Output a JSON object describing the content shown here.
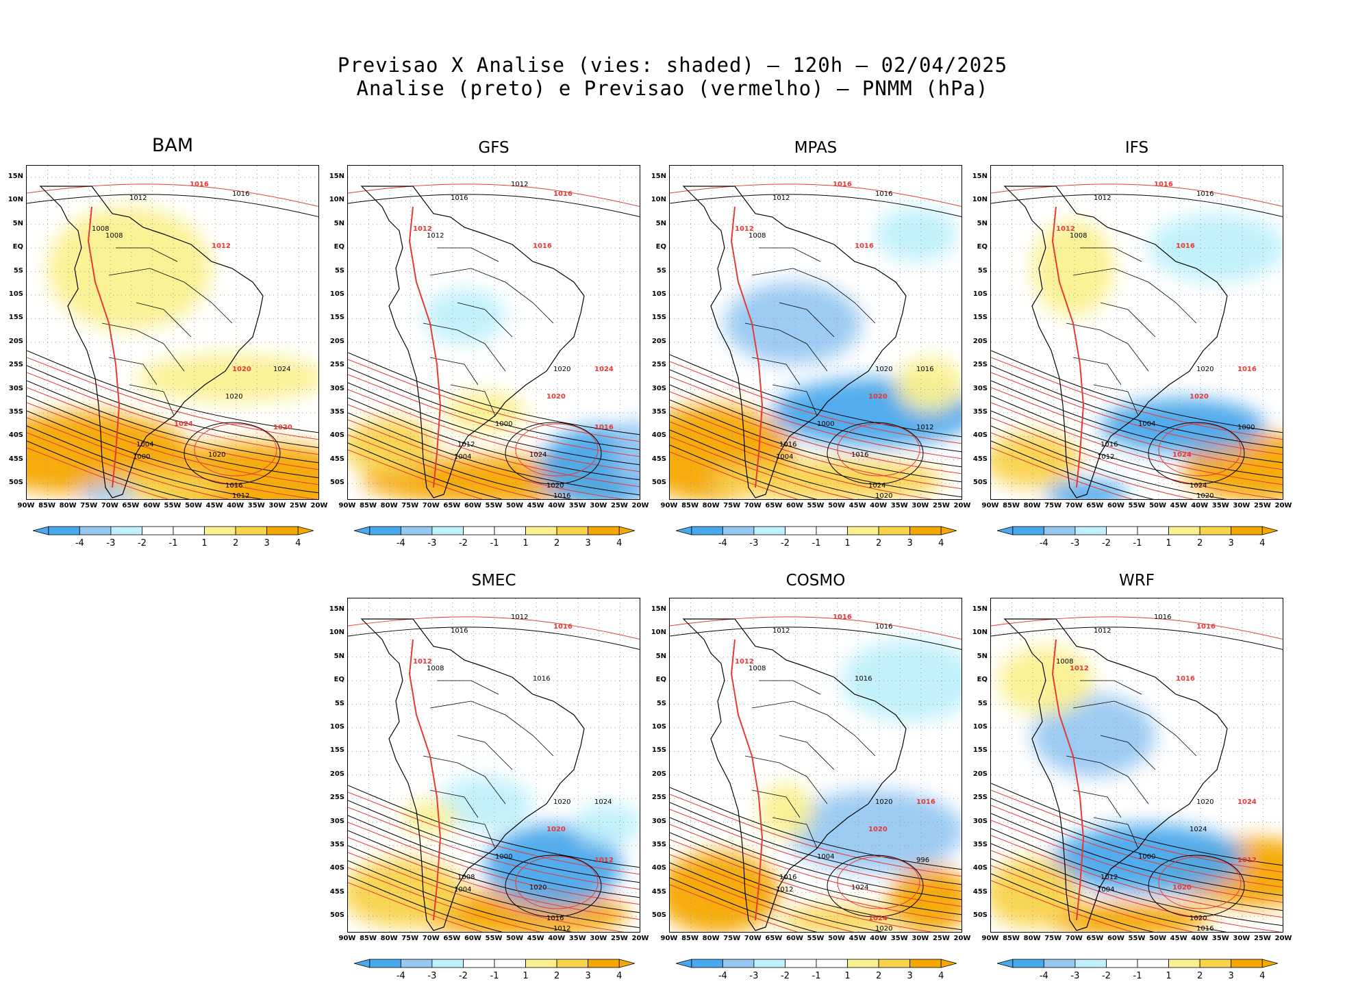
{
  "title_line1": "Previsao X Analise (vies: shaded) — 120h — 02/04/2025",
  "title_line2": "Analise (preto) e Previsao (vermelho) — PNMM (hPa)",
  "colors": {
    "neg4": "#4aa8ec",
    "neg3": "#97c8f2",
    "neg2": "#bff0fb",
    "neg1": "#ffffff",
    "pos1": "#ffffff",
    "pos2": "#fbf08f",
    "pos3": "#f9d34b",
    "pos4": "#f5a800",
    "analysis_isobar": "#000000",
    "forecast_isobar": "#e53935"
  },
  "lat_labels": [
    "15N",
    "10N",
    "5N",
    "EQ",
    "5S",
    "10S",
    "15S",
    "20S",
    "25S",
    "30S",
    "35S",
    "40S",
    "45S",
    "50S"
  ],
  "lon_labels": [
    "90W",
    "85W",
    "80W",
    "75W",
    "70W",
    "65W",
    "60W",
    "55W",
    "50W",
    "45W",
    "40W",
    "35W",
    "30W",
    "25W",
    "20W"
  ],
  "colorbar_labels": [
    "-4",
    "-3",
    "-2",
    "-1",
    "1",
    "2",
    "3",
    "4"
  ],
  "panels": [
    {
      "name": "BAM",
      "isobars": [
        {
          "text": "1016",
          "fc": true
        },
        {
          "text": "1016",
          "fc": false
        },
        {
          "text": "1012",
          "fc": false
        },
        {
          "text": "1008",
          "fc": false
        },
        {
          "text": "1008",
          "fc": false
        },
        {
          "text": "1012",
          "fc": true
        },
        {
          "text": "1020",
          "fc": true
        },
        {
          "text": "1020",
          "fc": false
        },
        {
          "text": "1024",
          "fc": false
        },
        {
          "text": "1020",
          "fc": false
        },
        {
          "text": "1016",
          "fc": false
        },
        {
          "text": "1012",
          "fc": false
        },
        {
          "text": "1004",
          "fc": false
        },
        {
          "text": "1000",
          "fc": false
        },
        {
          "text": "1024",
          "fc": true
        },
        {
          "text": "1020",
          "fc": true
        }
      ]
    },
    {
      "name": "GFS",
      "isobars": [
        {
          "text": "1012",
          "fc": false
        },
        {
          "text": "1016",
          "fc": true
        },
        {
          "text": "1016",
          "fc": false
        },
        {
          "text": "1012",
          "fc": true
        },
        {
          "text": "1012",
          "fc": false
        },
        {
          "text": "1016",
          "fc": true
        },
        {
          "text": "1020",
          "fc": false
        },
        {
          "text": "1020",
          "fc": true
        },
        {
          "text": "1024",
          "fc": true
        },
        {
          "text": "1024",
          "fc": false
        },
        {
          "text": "1020",
          "fc": false
        },
        {
          "text": "1016",
          "fc": false
        },
        {
          "text": "1012",
          "fc": false
        },
        {
          "text": "1004",
          "fc": false
        },
        {
          "text": "1000",
          "fc": false
        },
        {
          "text": "1016",
          "fc": true
        }
      ]
    },
    {
      "name": "MPAS",
      "isobars": [
        {
          "text": "1016",
          "fc": true
        },
        {
          "text": "1016",
          "fc": false
        },
        {
          "text": "1012",
          "fc": false
        },
        {
          "text": "1012",
          "fc": true
        },
        {
          "text": "1008",
          "fc": false
        },
        {
          "text": "1016",
          "fc": true
        },
        {
          "text": "1020",
          "fc": false
        },
        {
          "text": "1020",
          "fc": true
        },
        {
          "text": "1016",
          "fc": false
        },
        {
          "text": "1016",
          "fc": false
        },
        {
          "text": "1024",
          "fc": false
        },
        {
          "text": "1020",
          "fc": false
        },
        {
          "text": "1016",
          "fc": false
        },
        {
          "text": "1004",
          "fc": false
        },
        {
          "text": "1000",
          "fc": false
        },
        {
          "text": "1012",
          "fc": false
        }
      ]
    },
    {
      "name": "IFS",
      "isobars": [
        {
          "text": "1016",
          "fc": true
        },
        {
          "text": "1016",
          "fc": false
        },
        {
          "text": "1012",
          "fc": false
        },
        {
          "text": "1012",
          "fc": true
        },
        {
          "text": "1008",
          "fc": false
        },
        {
          "text": "1016",
          "fc": true
        },
        {
          "text": "1020",
          "fc": false
        },
        {
          "text": "1020",
          "fc": true
        },
        {
          "text": "1016",
          "fc": true
        },
        {
          "text": "1024",
          "fc": true
        },
        {
          "text": "1024",
          "fc": false
        },
        {
          "text": "1020",
          "fc": false
        },
        {
          "text": "1016",
          "fc": false
        },
        {
          "text": "1012",
          "fc": false
        },
        {
          "text": "1004",
          "fc": false
        },
        {
          "text": "1000",
          "fc": false
        }
      ]
    },
    {
      "name": "SMEC",
      "isobars": [
        {
          "text": "1012",
          "fc": false
        },
        {
          "text": "1016",
          "fc": true
        },
        {
          "text": "1016",
          "fc": false
        },
        {
          "text": "1012",
          "fc": true
        },
        {
          "text": "1008",
          "fc": false
        },
        {
          "text": "1016",
          "fc": false
        },
        {
          "text": "1020",
          "fc": false
        },
        {
          "text": "1020",
          "fc": true
        },
        {
          "text": "1024",
          "fc": false
        },
        {
          "text": "1020",
          "fc": false
        },
        {
          "text": "1016",
          "fc": false
        },
        {
          "text": "1012",
          "fc": false
        },
        {
          "text": "1008",
          "fc": false
        },
        {
          "text": "1004",
          "fc": false
        },
        {
          "text": "1000",
          "fc": false
        },
        {
          "text": "1012",
          "fc": true
        }
      ]
    },
    {
      "name": "COSMO",
      "isobars": [
        {
          "text": "1016",
          "fc": true
        },
        {
          "text": "1016",
          "fc": false
        },
        {
          "text": "1012",
          "fc": false
        },
        {
          "text": "1012",
          "fc": true
        },
        {
          "text": "1008",
          "fc": false
        },
        {
          "text": "1016",
          "fc": false
        },
        {
          "text": "1020",
          "fc": false
        },
        {
          "text": "1020",
          "fc": true
        },
        {
          "text": "1016",
          "fc": true
        },
        {
          "text": "1024",
          "fc": false
        },
        {
          "text": "1024",
          "fc": true
        },
        {
          "text": "1020",
          "fc": false
        },
        {
          "text": "1016",
          "fc": false
        },
        {
          "text": "1012",
          "fc": false
        },
        {
          "text": "1004",
          "fc": false
        },
        {
          "text": "996",
          "fc": false
        }
      ]
    },
    {
      "name": "WRF",
      "isobars": [
        {
          "text": "1016",
          "fc": false
        },
        {
          "text": "1016",
          "fc": true
        },
        {
          "text": "1012",
          "fc": false
        },
        {
          "text": "1008",
          "fc": false
        },
        {
          "text": "1012",
          "fc": true
        },
        {
          "text": "1016",
          "fc": true
        },
        {
          "text": "1020",
          "fc": false
        },
        {
          "text": "1024",
          "fc": false
        },
        {
          "text": "1024",
          "fc": true
        },
        {
          "text": "1020",
          "fc": true
        },
        {
          "text": "1020",
          "fc": false
        },
        {
          "text": "1016",
          "fc": false
        },
        {
          "text": "1012",
          "fc": false
        },
        {
          "text": "1004",
          "fc": false
        },
        {
          "text": "1000",
          "fc": false
        },
        {
          "text": "1012",
          "fc": true
        }
      ]
    }
  ]
}
